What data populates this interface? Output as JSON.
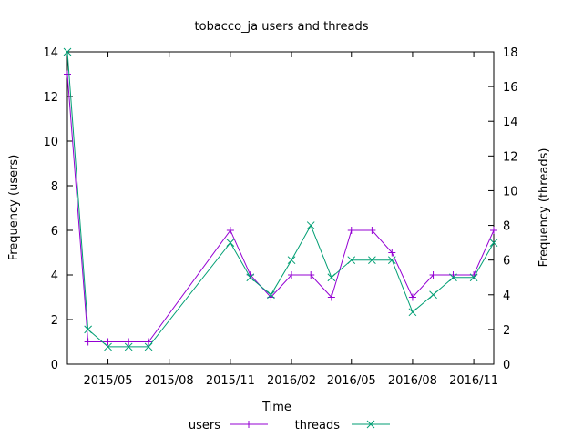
{
  "chart_data": {
    "type": "line",
    "title": "tobacco_ja users and threads",
    "xlabel": "Time",
    "ylabel_left": "Frequency (users)",
    "ylabel_right": "Frequency (threads)",
    "x_dates": [
      "2015-03-01",
      "2015-04-01",
      "2015-05-01",
      "2015-06-01",
      "2015-07-01",
      "2015-11-01",
      "2015-12-01",
      "2016-01-01",
      "2016-02-01",
      "2016-03-01",
      "2016-04-01",
      "2016-05-01",
      "2016-06-01",
      "2016-07-01",
      "2016-08-01",
      "2016-09-01",
      "2016-10-01",
      "2016-11-01",
      "2016-12-01"
    ],
    "xlim": [
      "2015-03-01",
      "2016-12-01"
    ],
    "xticks": [
      {
        "label": "2015/05",
        "date": "2015-05-01"
      },
      {
        "label": "2015/08",
        "date": "2015-08-01"
      },
      {
        "label": "2015/11",
        "date": "2015-11-01"
      },
      {
        "label": "2016/02",
        "date": "2016-02-01"
      },
      {
        "label": "2016/05",
        "date": "2016-05-01"
      },
      {
        "label": "2016/08",
        "date": "2016-08-01"
      },
      {
        "label": "2016/11",
        "date": "2016-11-01"
      }
    ],
    "ylim_left": [
      0,
      14
    ],
    "yticks_left": [
      0,
      2,
      4,
      6,
      8,
      10,
      12,
      14
    ],
    "ylim_right": [
      0,
      18
    ],
    "yticks_right": [
      0,
      2,
      4,
      6,
      8,
      10,
      12,
      14,
      16,
      18
    ],
    "grid": false,
    "legend_position": "bottom",
    "series": [
      {
        "name": "users",
        "axis": "left",
        "marker": "plus",
        "color": "#9400d3",
        "values": [
          13,
          1,
          1,
          1,
          1,
          6,
          4,
          3,
          4,
          4,
          3,
          6,
          6,
          5,
          3,
          4,
          4,
          4,
          6
        ]
      },
      {
        "name": "threads",
        "axis": "right",
        "marker": "cross",
        "color": "#009e73",
        "values": [
          18,
          2,
          1,
          1,
          1,
          7,
          5,
          4,
          6,
          8,
          5,
          6,
          6,
          6,
          3,
          4,
          5,
          5,
          7
        ]
      }
    ]
  }
}
